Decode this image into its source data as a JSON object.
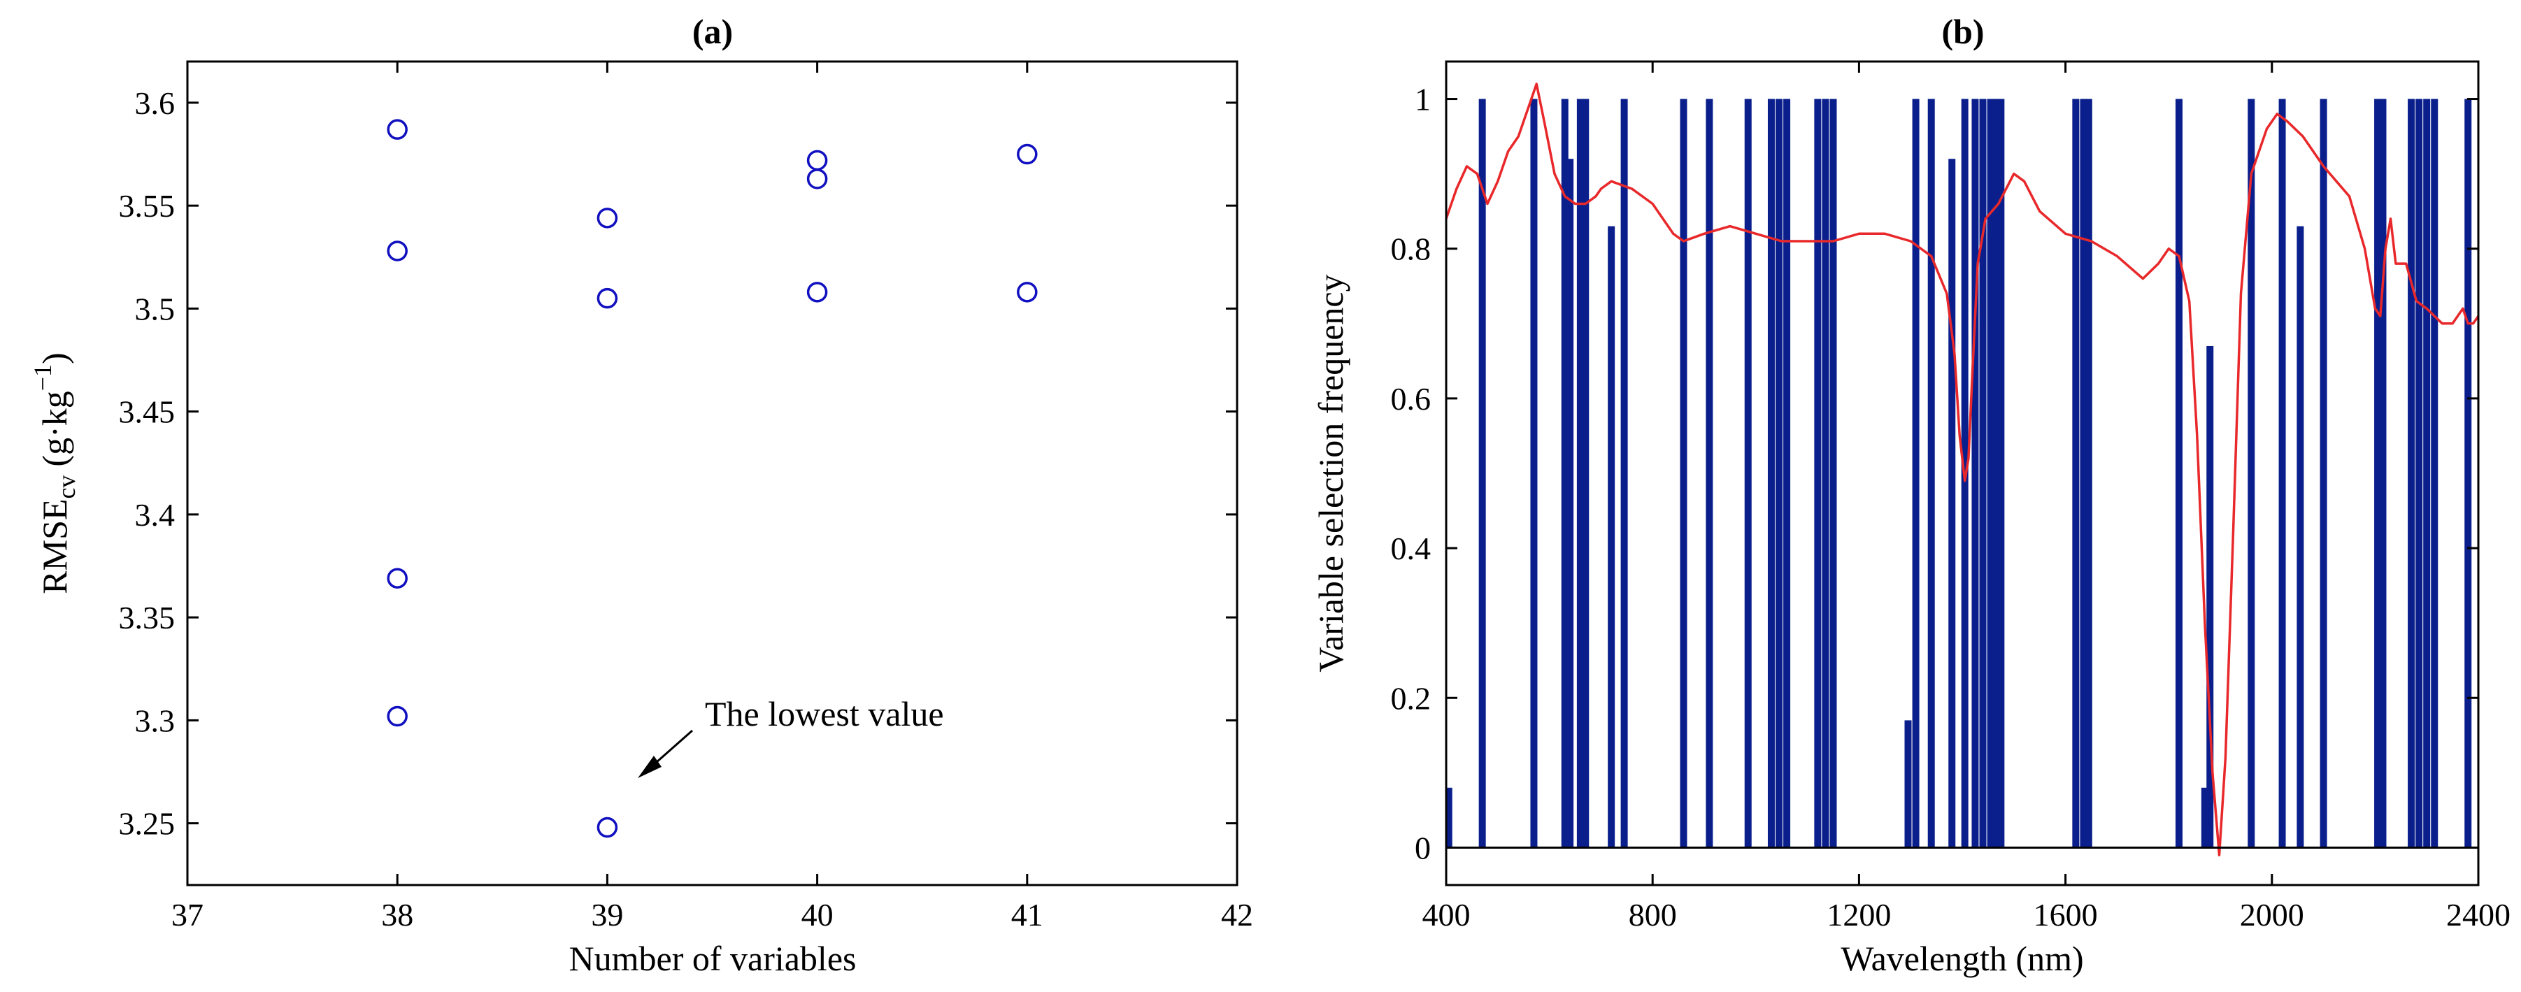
{
  "chart_data": [
    {
      "panel": "a",
      "type": "scatter",
      "title": "(a)",
      "xlabel": "Number of variables",
      "ylabel_main": "RMSE",
      "ylabel_sub": "cv",
      "ylabel_unit_pre": "(g·kg",
      "ylabel_unit_sup": "−1",
      "ylabel_unit_post": ")",
      "xlim": [
        37,
        42
      ],
      "ylim": [
        3.22,
        3.62
      ],
      "xticks": [
        37,
        38,
        39,
        40,
        41,
        42
      ],
      "yticks": [
        3.25,
        3.3,
        3.35,
        3.4,
        3.45,
        3.5,
        3.55,
        3.6
      ],
      "xtick_labels": [
        "37",
        "38",
        "39",
        "40",
        "41",
        "42"
      ],
      "ytick_labels": [
        "3.25",
        "3.3",
        "3.35",
        "3.4",
        "3.45",
        "3.5",
        "3.55",
        "3.6"
      ],
      "marker_color": "#1010c0",
      "points": [
        {
          "x": 38,
          "y": 3.587
        },
        {
          "x": 38,
          "y": 3.528
        },
        {
          "x": 38,
          "y": 3.369
        },
        {
          "x": 38,
          "y": 3.302
        },
        {
          "x": 39,
          "y": 3.544
        },
        {
          "x": 39,
          "y": 3.505
        },
        {
          "x": 39,
          "y": 3.248
        },
        {
          "x": 40,
          "y": 3.572
        },
        {
          "x": 40,
          "y": 3.563
        },
        {
          "x": 40,
          "y": 3.508
        },
        {
          "x": 41,
          "y": 3.575
        },
        {
          "x": 41,
          "y": 3.508
        }
      ],
      "annotation": {
        "text": "The lowest value",
        "x": 39,
        "y": 3.248
      }
    },
    {
      "panel": "b",
      "type": "bar",
      "title": "(b)",
      "xlabel": "Wavelength (nm)",
      "ylabel": "Variable selection frequency",
      "xlim": [
        400,
        2400
      ],
      "ylim": [
        -0.05,
        1.05
      ],
      "xticks": [
        400,
        800,
        1200,
        1600,
        2000,
        2400
      ],
      "yticks": [
        0,
        0.2,
        0.4,
        0.6,
        0.8,
        1
      ],
      "xtick_labels": [
        "400",
        "800",
        "1200",
        "1600",
        "2000",
        "2400"
      ],
      "ytick_labels": [
        "0",
        "0.2",
        "0.4",
        "0.6",
        "0.8",
        "1"
      ],
      "bar_color": "#0a1f8c",
      "line_color": "#e8282a",
      "bars": [
        {
          "x": 405,
          "v": 0.08
        },
        {
          "x": 470,
          "v": 1.0
        },
        {
          "x": 570,
          "v": 1.0
        },
        {
          "x": 630,
          "v": 1.0
        },
        {
          "x": 640,
          "v": 0.92
        },
        {
          "x": 660,
          "v": 1.0
        },
        {
          "x": 670,
          "v": 1.0
        },
        {
          "x": 720,
          "v": 0.83
        },
        {
          "x": 745,
          "v": 1.0
        },
        {
          "x": 860,
          "v": 1.0
        },
        {
          "x": 910,
          "v": 1.0
        },
        {
          "x": 985,
          "v": 1.0
        },
        {
          "x": 1030,
          "v": 1.0
        },
        {
          "x": 1045,
          "v": 1.0
        },
        {
          "x": 1060,
          "v": 1.0
        },
        {
          "x": 1120,
          "v": 1.0
        },
        {
          "x": 1135,
          "v": 1.0
        },
        {
          "x": 1150,
          "v": 1.0
        },
        {
          "x": 1295,
          "v": 0.17
        },
        {
          "x": 1310,
          "v": 1.0
        },
        {
          "x": 1340,
          "v": 1.0
        },
        {
          "x": 1380,
          "v": 0.92
        },
        {
          "x": 1405,
          "v": 1.0
        },
        {
          "x": 1425,
          "v": 1.0
        },
        {
          "x": 1440,
          "v": 1.0
        },
        {
          "x": 1455,
          "v": 1.0
        },
        {
          "x": 1465,
          "v": 1.0
        },
        {
          "x": 1475,
          "v": 1.0
        },
        {
          "x": 1620,
          "v": 1.0
        },
        {
          "x": 1635,
          "v": 1.0
        },
        {
          "x": 1645,
          "v": 1.0
        },
        {
          "x": 1820,
          "v": 1.0
        },
        {
          "x": 1870,
          "v": 0.08
        },
        {
          "x": 1880,
          "v": 0.67
        },
        {
          "x": 1960,
          "v": 1.0
        },
        {
          "x": 2020,
          "v": 1.0
        },
        {
          "x": 2055,
          "v": 0.83
        },
        {
          "x": 2100,
          "v": 1.0
        },
        {
          "x": 2205,
          "v": 1.0
        },
        {
          "x": 2215,
          "v": 1.0
        },
        {
          "x": 2270,
          "v": 1.0
        },
        {
          "x": 2285,
          "v": 1.0
        },
        {
          "x": 2300,
          "v": 1.0
        },
        {
          "x": 2315,
          "v": 1.0
        },
        {
          "x": 2380,
          "v": 1.0
        }
      ],
      "line": {
        "x": [
          400,
          420,
          440,
          460,
          480,
          500,
          520,
          540,
          560,
          575,
          590,
          610,
          630,
          650,
          670,
          690,
          700,
          720,
          760,
          800,
          840,
          860,
          900,
          950,
          1000,
          1050,
          1100,
          1150,
          1200,
          1250,
          1300,
          1340,
          1370,
          1385,
          1395,
          1405,
          1412,
          1420,
          1430,
          1445,
          1470,
          1500,
          1520,
          1550,
          1600,
          1650,
          1700,
          1750,
          1780,
          1800,
          1820,
          1840,
          1855,
          1870,
          1885,
          1898,
          1910,
          1925,
          1940,
          1960,
          1990,
          2010,
          2030,
          2060,
          2100,
          2150,
          2180,
          2200,
          2210,
          2220,
          2230,
          2240,
          2260,
          2280,
          2300,
          2330,
          2350,
          2370,
          2380,
          2390,
          2400
        ],
        "y": [
          0.84,
          0.88,
          0.91,
          0.9,
          0.86,
          0.89,
          0.93,
          0.95,
          0.99,
          1.02,
          0.97,
          0.9,
          0.87,
          0.86,
          0.86,
          0.87,
          0.88,
          0.89,
          0.88,
          0.86,
          0.82,
          0.81,
          0.82,
          0.83,
          0.82,
          0.81,
          0.81,
          0.81,
          0.82,
          0.82,
          0.81,
          0.79,
          0.74,
          0.66,
          0.55,
          0.49,
          0.52,
          0.64,
          0.78,
          0.84,
          0.86,
          0.9,
          0.89,
          0.85,
          0.82,
          0.81,
          0.79,
          0.76,
          0.78,
          0.8,
          0.79,
          0.73,
          0.55,
          0.3,
          0.1,
          -0.01,
          0.12,
          0.42,
          0.74,
          0.9,
          0.96,
          0.98,
          0.97,
          0.95,
          0.91,
          0.87,
          0.8,
          0.72,
          0.71,
          0.8,
          0.84,
          0.78,
          0.78,
          0.73,
          0.72,
          0.7,
          0.7,
          0.72,
          0.7,
          0.7,
          0.71
        ]
      }
    }
  ]
}
